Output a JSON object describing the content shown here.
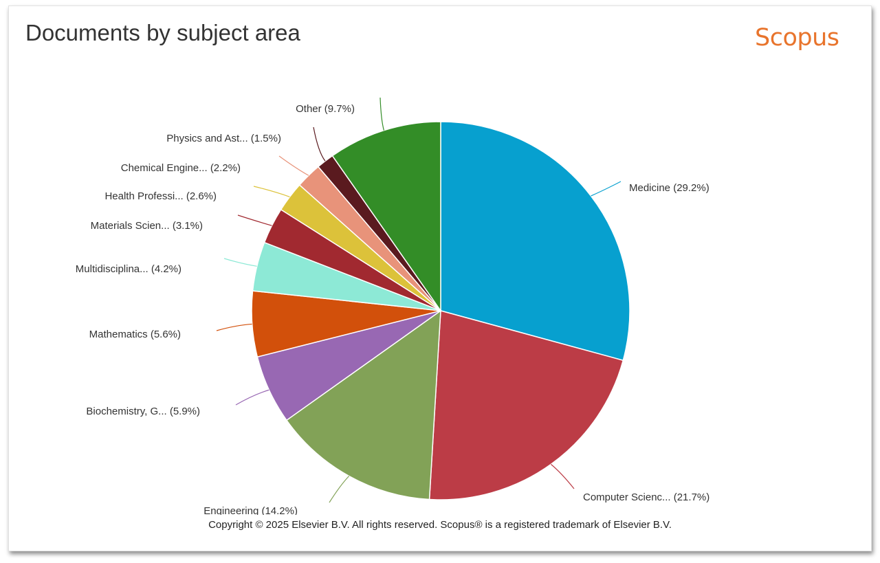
{
  "header": {
    "title": "Documents by subject area",
    "brand": "Scopus",
    "brand_color": "#e8742c"
  },
  "footer": {
    "copyright": "Copyright © 2025 Elsevier B.V. All rights reserved. Scopus® is a registered trademark of Elsevier B.V."
  },
  "chart_data": {
    "type": "pie",
    "title": "Documents by subject area",
    "start_angle_deg": 0,
    "direction": "clockwise",
    "slices": [
      {
        "label": "Medicine (29.2%)",
        "value": 29.2,
        "color": "#07a0cf"
      },
      {
        "label": "Computer Scienc... (21.7%)",
        "value": 21.7,
        "color": "#bc3c46"
      },
      {
        "label": "Engineering (14.2%)",
        "value": 14.2,
        "color": "#82a257"
      },
      {
        "label": "Biochemistry, G... (5.9%)",
        "value": 5.9,
        "color": "#9868b3"
      },
      {
        "label": "Mathematics (5.6%)",
        "value": 5.6,
        "color": "#d2500b"
      },
      {
        "label": "Multidisciplina... (4.2%)",
        "value": 4.2,
        "color": "#8de9d6"
      },
      {
        "label": "Materials Scien... (3.1%)",
        "value": 3.1,
        "color": "#a12930"
      },
      {
        "label": "Health Professi... (2.6%)",
        "value": 2.6,
        "color": "#dcc23a"
      },
      {
        "label": "Chemical Engine... (2.2%)",
        "value": 2.2,
        "color": "#e8937a"
      },
      {
        "label": "Physics and Ast... (1.5%)",
        "value": 1.5,
        "color": "#5a1a1f"
      },
      {
        "label": "Other (9.7%)",
        "value": 9.7,
        "color": "#338d27"
      }
    ]
  }
}
